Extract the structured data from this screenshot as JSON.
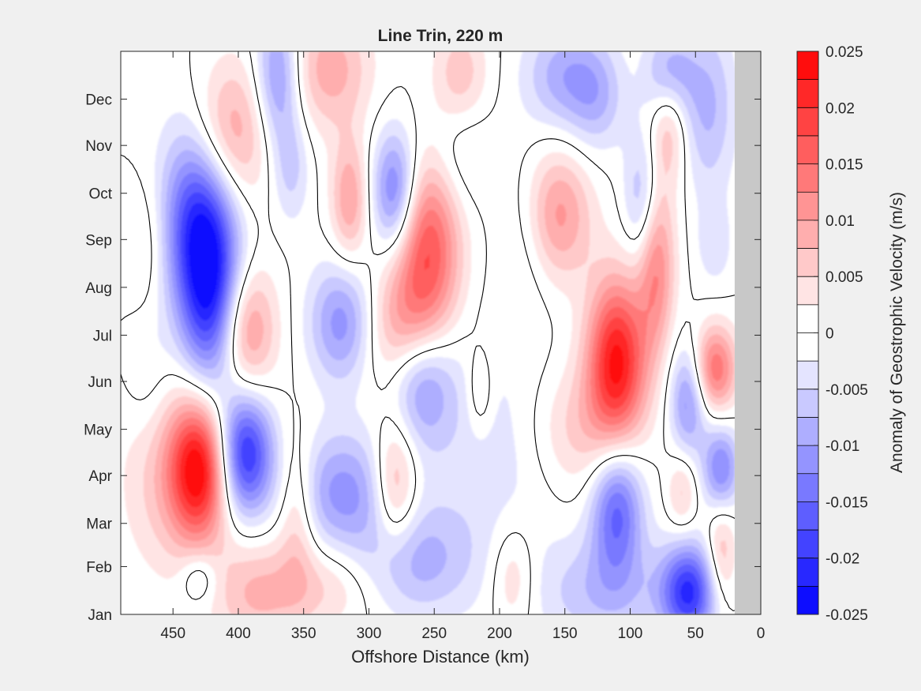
{
  "chart_data": {
    "type": "heatmap",
    "subtype": "filled-contour",
    "title": "Line Trin, 220 m",
    "xlabel": "Offshore Distance (km)",
    "ylabel": "",
    "colorbar_label": "Anomaly of Geostrophic Velocity (m/s)",
    "xlim": [
      0,
      490
    ],
    "x_reversed": true,
    "x_ticks": [
      450,
      400,
      350,
      300,
      250,
      200,
      150,
      100,
      50,
      0
    ],
    "y_categories": [
      "Jan",
      "Feb",
      "Mar",
      "Apr",
      "May",
      "Jun",
      "Jul",
      "Aug",
      "Sep",
      "Oct",
      "Nov",
      "Dec"
    ],
    "y_ticks_doy": [
      1,
      32,
      60,
      91,
      121,
      152,
      182,
      213,
      244,
      274,
      305,
      335
    ],
    "ylim_doy": [
      1,
      366
    ],
    "clim": [
      -0.025,
      0.025
    ],
    "contour_step": 0.0025,
    "colorbar_ticks": [
      "0.025",
      "0.02",
      "0.015",
      "0.01",
      "0.005",
      "0",
      "-0.005",
      "-0.01",
      "-0.015",
      "-0.02",
      "-0.025"
    ],
    "zero_contour_drawn": true,
    "masked_region_km": [
      0,
      20
    ],
    "masked_color": "#c8c8c8",
    "colormap": {
      "negative": "#0000ff",
      "zero": "#ffffff",
      "positive": "#ff0000"
    },
    "features": [
      {
        "x": 430,
        "doy": 258,
        "v": -0.021,
        "sx": 20,
        "sy": 48
      },
      {
        "x": 420,
        "doy": 200,
        "v": -0.016,
        "sx": 16,
        "sy": 42
      },
      {
        "x": 430,
        "doy": 95,
        "v": 0.023,
        "sx": 16,
        "sy": 32
      },
      {
        "x": 395,
        "doy": 105,
        "v": -0.021,
        "sx": 15,
        "sy": 28
      },
      {
        "x": 395,
        "doy": 185,
        "v": 0.013,
        "sx": 16,
        "sy": 30
      },
      {
        "x": 410,
        "doy": 310,
        "v": 0.013,
        "sx": 22,
        "sy": 34
      },
      {
        "x": 455,
        "doy": 90,
        "v": 0.006,
        "sx": 25,
        "sy": 45
      },
      {
        "x": 430,
        "doy": 25,
        "v": -0.006,
        "sx": 10,
        "sy": 12
      },
      {
        "x": 470,
        "doy": 240,
        "v": 0.004,
        "sx": 12,
        "sy": 30
      },
      {
        "x": 470,
        "doy": 155,
        "v": -0.003,
        "sx": 12,
        "sy": 30
      },
      {
        "x": 370,
        "doy": 350,
        "v": -0.012,
        "sx": 12,
        "sy": 32
      },
      {
        "x": 360,
        "doy": 290,
        "v": -0.006,
        "sx": 10,
        "sy": 25
      },
      {
        "x": 330,
        "doy": 355,
        "v": 0.009,
        "sx": 22,
        "sy": 28
      },
      {
        "x": 320,
        "doy": 190,
        "v": -0.012,
        "sx": 18,
        "sy": 28
      },
      {
        "x": 320,
        "doy": 80,
        "v": -0.011,
        "sx": 28,
        "sy": 28
      },
      {
        "x": 355,
        "doy": 70,
        "v": 0.007,
        "sx": 10,
        "sy": 35
      },
      {
        "x": 385,
        "doy": 15,
        "v": 0.008,
        "sx": 25,
        "sy": 25
      },
      {
        "x": 280,
        "doy": 275,
        "v": -0.015,
        "sx": 12,
        "sy": 28
      },
      {
        "x": 315,
        "doy": 270,
        "v": 0.01,
        "sx": 10,
        "sy": 28
      },
      {
        "x": 255,
        "doy": 240,
        "v": 0.017,
        "sx": 18,
        "sy": 40
      },
      {
        "x": 275,
        "doy": 185,
        "v": 0.01,
        "sx": 22,
        "sy": 30
      },
      {
        "x": 260,
        "doy": 152,
        "v": -0.012,
        "sx": 18,
        "sy": 28
      },
      {
        "x": 280,
        "doy": 85,
        "v": 0.011,
        "sx": 12,
        "sy": 30
      },
      {
        "x": 265,
        "doy": 35,
        "v": -0.008,
        "sx": 30,
        "sy": 25
      },
      {
        "x": 330,
        "doy": 20,
        "v": 0.005,
        "sx": 25,
        "sy": 20
      },
      {
        "x": 230,
        "doy": 350,
        "v": 0.007,
        "sx": 15,
        "sy": 25
      },
      {
        "x": 210,
        "doy": 100,
        "v": -0.004,
        "sx": 40,
        "sy": 60
      },
      {
        "x": 230,
        "doy": 300,
        "v": -0.004,
        "sx": 18,
        "sy": 28
      },
      {
        "x": 190,
        "doy": 25,
        "v": 0.006,
        "sx": 12,
        "sy": 25
      },
      {
        "x": 180,
        "doy": 245,
        "v": -0.003,
        "sx": 15,
        "sy": 40
      },
      {
        "x": 215,
        "doy": 145,
        "v": 0.005,
        "sx": 7,
        "sy": 20
      },
      {
        "x": 155,
        "doy": 260,
        "v": 0.011,
        "sx": 18,
        "sy": 30
      },
      {
        "x": 150,
        "doy": 350,
        "v": -0.009,
        "sx": 22,
        "sy": 25
      },
      {
        "x": 125,
        "doy": 335,
        "v": -0.006,
        "sx": 15,
        "sy": 25
      },
      {
        "x": 110,
        "doy": 165,
        "v": 0.023,
        "sx": 16,
        "sy": 38
      },
      {
        "x": 140,
        "doy": 120,
        "v": 0.006,
        "sx": 25,
        "sy": 30
      },
      {
        "x": 110,
        "doy": 70,
        "v": -0.016,
        "sx": 14,
        "sy": 30
      },
      {
        "x": 120,
        "doy": 15,
        "v": -0.007,
        "sx": 35,
        "sy": 25
      },
      {
        "x": 70,
        "doy": 330,
        "v": 0.011,
        "sx": 10,
        "sy": 30
      },
      {
        "x": 80,
        "doy": 230,
        "v": 0.013,
        "sx": 10,
        "sy": 40
      },
      {
        "x": 90,
        "doy": 270,
        "v": -0.009,
        "sx": 10,
        "sy": 30
      },
      {
        "x": 70,
        "doy": 350,
        "v": -0.015,
        "sx": 12,
        "sy": 22
      },
      {
        "x": 55,
        "doy": 140,
        "v": -0.012,
        "sx": 10,
        "sy": 25
      },
      {
        "x": 55,
        "doy": 15,
        "v": -0.02,
        "sx": 15,
        "sy": 22
      },
      {
        "x": 35,
        "doy": 160,
        "v": 0.015,
        "sx": 12,
        "sy": 20
      },
      {
        "x": 30,
        "doy": 95,
        "v": -0.013,
        "sx": 10,
        "sy": 20
      },
      {
        "x": 30,
        "doy": 40,
        "v": 0.008,
        "sx": 8,
        "sy": 25
      },
      {
        "x": 40,
        "doy": 330,
        "v": -0.008,
        "sx": 15,
        "sy": 40
      },
      {
        "x": 35,
        "doy": 240,
        "v": -0.004,
        "sx": 10,
        "sy": 20
      },
      {
        "x": 60,
        "doy": 80,
        "v": 0.006,
        "sx": 8,
        "sy": 18
      }
    ]
  }
}
